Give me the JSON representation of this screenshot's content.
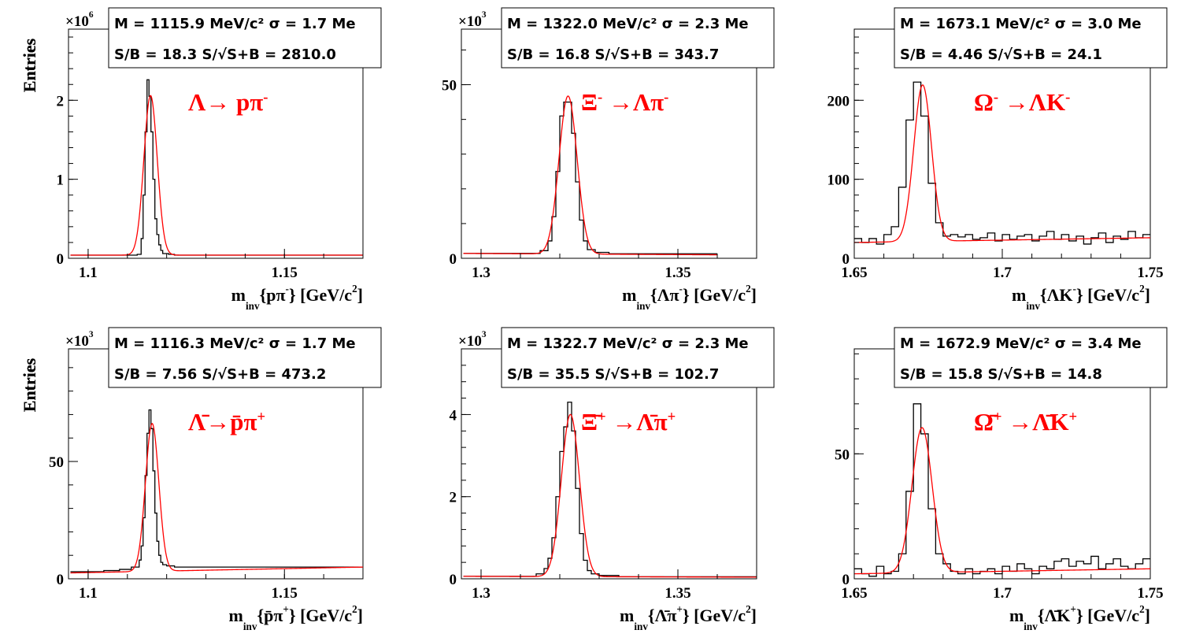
{
  "chart_data": [
    {
      "type": "histogram",
      "ylabel": "Entries",
      "xlabel": "m_inv{pπ^-} [GeV/c^2]",
      "exponent_label": "×10^6",
      "decay_label": "Λ→ pπ^-",
      "stats": {
        "line1": "M = 1115.9 MeV/c² σ = 1.7 Me",
        "line2": "S/B = 18.3   S/√S+B = 2810.0"
      },
      "xlim": [
        1.095,
        1.17
      ],
      "ylim": [
        0,
        2.9
      ],
      "xticks": [
        1.1,
        1.15
      ],
      "xtick_labels": [
        "1.1",
        "1.15"
      ],
      "yticks": [
        0,
        1,
        2
      ],
      "ytick_labels": [
        "0",
        "1",
        "2"
      ],
      "fit": {
        "mean": 1.1159,
        "sigma": 0.0017,
        "amplitude": 2.02,
        "background": [
          0.04,
          0.04
        ]
      },
      "hist_bins": [
        1.0955,
        1.1125,
        1.1135,
        1.114,
        1.1145,
        1.115,
        1.1155,
        1.116,
        1.1165,
        1.117,
        1.1175,
        1.118,
        1.1185,
        1.119,
        1.1205,
        1.122,
        1.17
      ],
      "hist_values": [
        0.04,
        0.05,
        0.25,
        0.8,
        1.6,
        2.26,
        2.05,
        1.6,
        1.0,
        0.5,
        0.3,
        0.17,
        0.1,
        0.06,
        0.05,
        0.04
      ]
    },
    {
      "type": "histogram",
      "ylabel": "Entries",
      "xlabel": "m_inv{Λπ^-} [GeV/c^2]",
      "exponent_label": "×10^3",
      "decay_label": "Ξ^- →Λπ^-",
      "stats": {
        "line1": "M = 1322.0 MeV/c² σ = 2.3 Me",
        "line2": "S/B = 16.8   S/√S+B = 343.7"
      },
      "xlim": [
        1.295,
        1.37
      ],
      "ylim": [
        0,
        66
      ],
      "xticks": [
        1.3,
        1.35
      ],
      "xtick_labels": [
        "1.3",
        "1.35"
      ],
      "yticks": [
        0,
        50
      ],
      "ytick_labels": [
        "0",
        "50"
      ],
      "fit": {
        "mean": 1.3221,
        "sigma": 0.0023,
        "amplitude": 45.5,
        "background": [
          1.4,
          1.0
        ]
      },
      "hist_bins": [
        1.2955,
        1.315,
        1.317,
        1.318,
        1.319,
        1.32,
        1.321,
        1.322,
        1.323,
        1.324,
        1.325,
        1.326,
        1.327,
        1.329,
        1.3325,
        1.36
      ],
      "hist_values": [
        1.4,
        2.2,
        5,
        12,
        25,
        41,
        45,
        45,
        36,
        22,
        11,
        5,
        2.5,
        1.7,
        1.3
      ]
    },
    {
      "type": "histogram",
      "ylabel": "Entries",
      "xlabel": "m_inv{ΛK^-} [GeV/c^2]",
      "exponent_label": "",
      "decay_label": "Ω^- →ΛK^-",
      "stats": {
        "line1": "M = 1673.1 MeV/c² σ = 3.0 Me",
        "line2": "S/B = 4.46   S/√S+B = 24.1"
      },
      "xlim": [
        1.65,
        1.75
      ],
      "ylim": [
        0,
        290
      ],
      "xticks": [
        1.65,
        1.7,
        1.75
      ],
      "xtick_labels": [
        "1.65",
        "1.7",
        "1.75"
      ],
      "yticks": [
        0,
        100,
        200
      ],
      "ytick_labels": [
        "0",
        "100",
        "200"
      ],
      "fit": {
        "mean": 1.6731,
        "sigma": 0.003,
        "amplitude": 198,
        "background": [
          20,
          26
        ]
      },
      "hist_bins": [
        1.65,
        1.6525,
        1.655,
        1.6575,
        1.66,
        1.6625,
        1.665,
        1.6675,
        1.67,
        1.6725,
        1.675,
        1.6775,
        1.68,
        1.6825,
        1.685,
        1.6875,
        1.69,
        1.6925,
        1.695,
        1.6975,
        1.7,
        1.7025,
        1.705,
        1.7075,
        1.71,
        1.7125,
        1.715,
        1.7175,
        1.72,
        1.7225,
        1.725,
        1.7275,
        1.73,
        1.7325,
        1.735,
        1.7375,
        1.74,
        1.7425,
        1.745,
        1.7475,
        1.75
      ],
      "hist_values": [
        25,
        20,
        25,
        18,
        30,
        40,
        90,
        175,
        223,
        180,
        95,
        45,
        28,
        30,
        27,
        30,
        24,
        26,
        32,
        22,
        30,
        24,
        28,
        30,
        22,
        28,
        34,
        24,
        30,
        22,
        28,
        18,
        26,
        32,
        20,
        28,
        24,
        34,
        26,
        30
      ]
    },
    {
      "type": "histogram",
      "ylabel": "Entries",
      "xlabel": "m_inv{p̄π^+} [GeV/c^2]",
      "exponent_label": "×10^3",
      "decay_label": "Λ̄→p̄π^+",
      "stats": {
        "line1": "M = 1116.3 MeV/c² σ = 1.7 Me",
        "line2": "S/B = 7.56   S/√S+B = 473.2"
      },
      "xlim": [
        1.095,
        1.17
      ],
      "ylim": [
        0,
        98
      ],
      "xticks": [
        1.1,
        1.15
      ],
      "xtick_labels": [
        "1.1",
        "1.15"
      ],
      "yticks": [
        0,
        50
      ],
      "ytick_labels": [
        "0",
        "50"
      ],
      "fit": {
        "mean": 1.1163,
        "sigma": 0.0017,
        "amplitude": 63,
        "background": [
          2.5,
          5
        ]
      },
      "hist_bins": [
        1.0955,
        1.104,
        1.108,
        1.111,
        1.113,
        1.1135,
        1.114,
        1.1145,
        1.115,
        1.1155,
        1.116,
        1.1165,
        1.117,
        1.1175,
        1.118,
        1.1185,
        1.119,
        1.12,
        1.122,
        1.17
      ],
      "hist_values": [
        3,
        3.5,
        4,
        5,
        8,
        14,
        26,
        44,
        62,
        72,
        64,
        46,
        28,
        16,
        10,
        7,
        6,
        5.5,
        5
      ]
    },
    {
      "type": "histogram",
      "ylabel": "Entries",
      "xlabel": "m_inv{Λ̄π^+} [GeV/c^2]",
      "exponent_label": "×10^3",
      "decay_label": "Ξ̄^+ →Λ̄π^+",
      "stats": {
        "line1": "M = 1322.7 MeV/c² σ = 2.3 Me",
        "line2": "S/B = 35.5   S/√S+B = 102.7"
      },
      "xlim": [
        1.295,
        1.37
      ],
      "ylim": [
        0,
        5.6
      ],
      "xticks": [
        1.3,
        1.35
      ],
      "xtick_labels": [
        "1.3",
        "1.35"
      ],
      "yticks": [
        0,
        2,
        4
      ],
      "ytick_labels": [
        "0",
        "2",
        "4"
      ],
      "fit": {
        "mean": 1.3227,
        "sigma": 0.0023,
        "amplitude": 3.95,
        "background": [
          0.06,
          0.04
        ]
      },
      "hist_bins": [
        1.2955,
        1.314,
        1.316,
        1.317,
        1.318,
        1.319,
        1.32,
        1.321,
        1.322,
        1.323,
        1.324,
        1.325,
        1.326,
        1.327,
        1.328,
        1.33,
        1.335,
        1.37
      ],
      "hist_values": [
        0.06,
        0.12,
        0.25,
        0.5,
        1.0,
        2.0,
        3.1,
        3.7,
        4.3,
        3.6,
        2.2,
        1.1,
        0.45,
        0.2,
        0.12,
        0.08,
        0.05
      ]
    },
    {
      "type": "histogram",
      "ylabel": "Entries",
      "xlabel": "m_inv{Λ̄K^+} [GeV/c^2]",
      "exponent_label": "",
      "decay_label": "Ω̄^+ →Λ̄K^+",
      "stats": {
        "line1": "M = 1672.9 MeV/c² σ = 3.4 Me",
        "line2": "S/B = 15.8   S/√S+B = 14.8"
      },
      "xlim": [
        1.65,
        1.75
      ],
      "ylim": [
        0,
        92
      ],
      "xticks": [
        1.65,
        1.7,
        1.75
      ],
      "xtick_labels": [
        "1.65",
        "1.7",
        "1.75"
      ],
      "yticks": [
        0,
        50
      ],
      "ytick_labels": [
        "0",
        "50"
      ],
      "fit": {
        "mean": 1.6729,
        "sigma": 0.0034,
        "amplitude": 58,
        "background": [
          2,
          4
        ]
      },
      "hist_bins": [
        1.65,
        1.6525,
        1.655,
        1.6575,
        1.66,
        1.6625,
        1.665,
        1.6675,
        1.67,
        1.6725,
        1.675,
        1.6775,
        1.68,
        1.6825,
        1.685,
        1.6875,
        1.69,
        1.6925,
        1.695,
        1.6975,
        1.7,
        1.7025,
        1.705,
        1.7075,
        1.71,
        1.7125,
        1.715,
        1.7175,
        1.72,
        1.7225,
        1.725,
        1.7275,
        1.73,
        1.7325,
        1.735,
        1.7375,
        1.74,
        1.7425,
        1.745,
        1.7475,
        1.75
      ],
      "hist_values": [
        4,
        2,
        1,
        5,
        2,
        3,
        10,
        35,
        70,
        58,
        28,
        10,
        6,
        3,
        2,
        4,
        2,
        3,
        4,
        2,
        5,
        3,
        6,
        4,
        2,
        5,
        4,
        7,
        8,
        5,
        7,
        6,
        9,
        4,
        6,
        8,
        5,
        4,
        6,
        8
      ]
    }
  ]
}
